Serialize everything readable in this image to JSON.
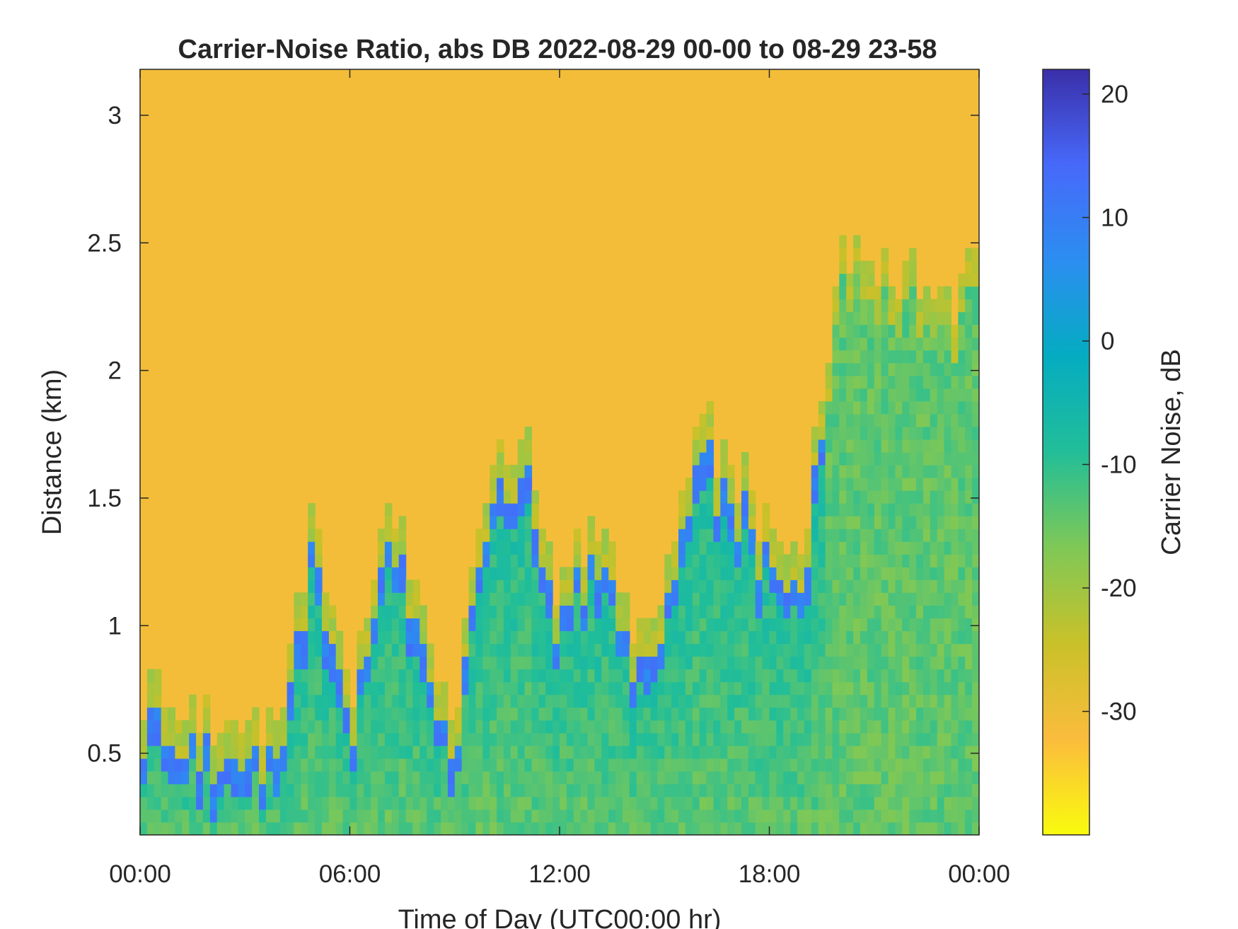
{
  "chart_data": {
    "type": "heatmap",
    "title": "Carrier-Noise Ratio, abs DB 2022-08-29 00-00 to 08-29 23-58",
    "xlabel": "Time of Day (UTC00:00 hr)",
    "ylabel": "Distance (km)",
    "x_unit": "hours",
    "xlim": [
      0,
      24
    ],
    "ylim": [
      0.18,
      3.18
    ],
    "x_ticks": [
      0,
      6,
      12,
      18,
      24
    ],
    "x_tick_labels": [
      "00:00",
      "06:00",
      "12:00",
      "18:00",
      "00:00"
    ],
    "y_ticks": [
      0.5,
      1,
      1.5,
      2,
      2.5,
      3
    ],
    "y_tick_labels": [
      "0.5",
      "1",
      "1.5",
      "2",
      "2.5",
      "3"
    ],
    "colorbar": {
      "label": "Carrier Noise, dB",
      "clim": [
        -40,
        22
      ],
      "ticks": [
        -30,
        -20,
        -10,
        0,
        10,
        20
      ],
      "tick_labels": [
        "-30",
        "-20",
        "-10",
        "0",
        "10",
        "20"
      ],
      "colors": [
        "#f9fb0e",
        "#fbbc3d",
        "#c9c129",
        "#7fc856",
        "#22be98",
        "#05acc1",
        "#2b8ef0",
        "#4769fa",
        "#3a2fa8"
      ]
    },
    "z_summary": {
      "background_db": -31,
      "boundary_layer_top_km": {
        "x": [
          0,
          1,
          2,
          3,
          4,
          5,
          6,
          7,
          8,
          9,
          10,
          11,
          12,
          13,
          14,
          15,
          16,
          17,
          18,
          19,
          20,
          21,
          22,
          23,
          24
        ],
        "y": [
          0.62,
          0.52,
          0.46,
          0.42,
          0.48,
          1.3,
          0.55,
          1.35,
          1.0,
          0.5,
          1.55,
          1.6,
          1.0,
          1.3,
          0.9,
          1.0,
          1.65,
          1.5,
          1.2,
          1.2,
          2.3,
          2.3,
          2.2,
          2.1,
          2.3
        ]
      },
      "boundary_layer_db": -8,
      "top_edge_db": 10
    }
  }
}
